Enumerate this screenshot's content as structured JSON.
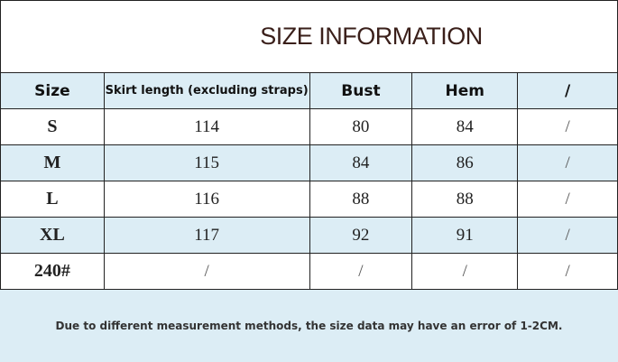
{
  "title": "SIZE INFORMATION",
  "headers": [
    "Size",
    "Skirt length (excluding straps)",
    "Bust",
    "Hem",
    "/"
  ],
  "rows": [
    [
      "S",
      "114",
      "80",
      "84",
      "/"
    ],
    [
      "M",
      "115",
      "84",
      "86",
      "/"
    ],
    [
      "L",
      "116",
      "88",
      "88",
      "/"
    ],
    [
      "XL",
      "117",
      "92",
      "91",
      "/"
    ],
    [
      "240#",
      "/",
      "/",
      "/",
      "/"
    ]
  ],
  "footer_note": "Due to different measurement methods, the size data may have an error of 1-2CM.",
  "colors": {
    "row_highlight": "#dcedf5",
    "title": "#3a1f1a"
  }
}
